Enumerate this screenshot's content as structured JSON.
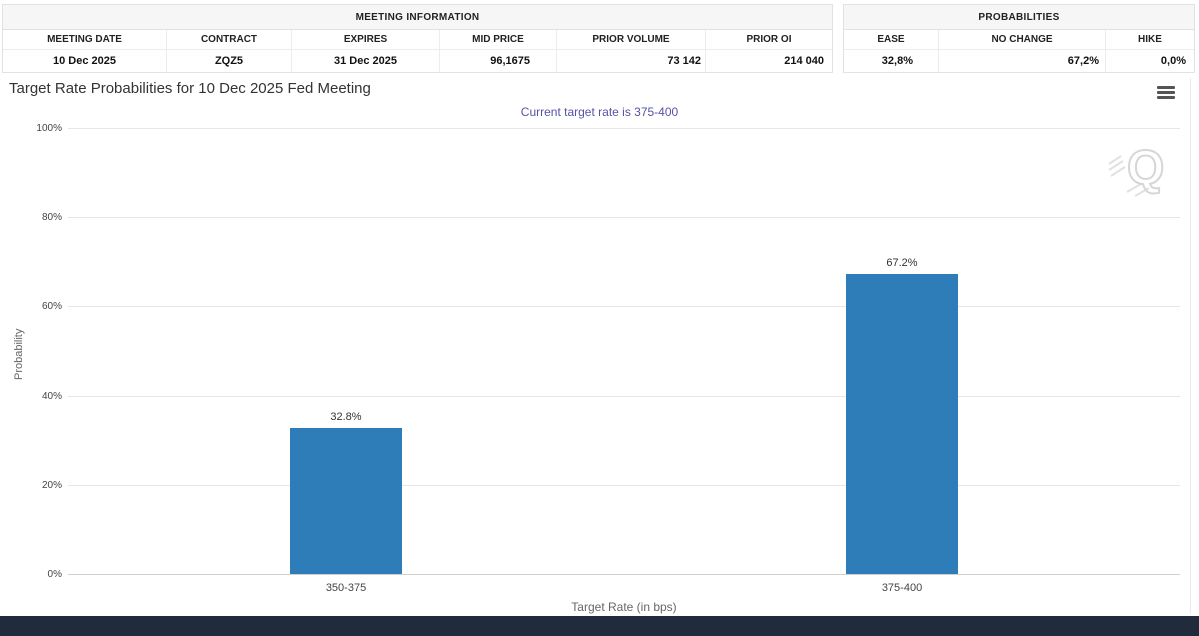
{
  "header_tables": {
    "meeting_information": {
      "title": "MEETING INFORMATION",
      "columns": [
        "MEETING DATE",
        "CONTRACT",
        "EXPIRES",
        "MID PRICE",
        "PRIOR VOLUME",
        "PRIOR OI"
      ],
      "row": {
        "meeting_date": "10 Dec 2025",
        "contract": "ZQZ5",
        "expires": "31 Dec 2025",
        "mid_price": "96,1675",
        "prior_volume": "73 142",
        "prior_oi": "214 040"
      }
    },
    "probabilities": {
      "title": "PROBABILITIES",
      "columns": [
        "EASE",
        "NO CHANGE",
        "HIKE"
      ],
      "row": {
        "ease": "32,8%",
        "no_change": "67,2%",
        "hike": "0,0%"
      }
    }
  },
  "chart": {
    "title": "Target Rate Probabilities for 10 Dec 2025 Fed Meeting",
    "subtitle": "Current target rate is 375-400",
    "subtitle_color": "#5553a2",
    "bar_color": "#2e7cb8",
    "menu_icon": "hamburger-menu-icon",
    "watermark_letter": "Q"
  },
  "chart_data": {
    "type": "bar",
    "title": "Target Rate Probabilities for 10 Dec 2025 Fed Meeting",
    "subtitle": "Current target rate is 375-400",
    "categories": [
      "350-375",
      "375-400"
    ],
    "values": [
      32.8,
      67.2
    ],
    "value_labels": [
      "32.8%",
      "67.2%"
    ],
    "xlabel": "Target Rate (in bps)",
    "ylabel": "Probability",
    "ylim": [
      0,
      100
    ],
    "ytick_labels": [
      "100%",
      "80%",
      "60%",
      "40%",
      "20%",
      "0%"
    ],
    "grid": true,
    "legend": "none"
  },
  "footer": {
    "bar_color": "#202c3c"
  }
}
